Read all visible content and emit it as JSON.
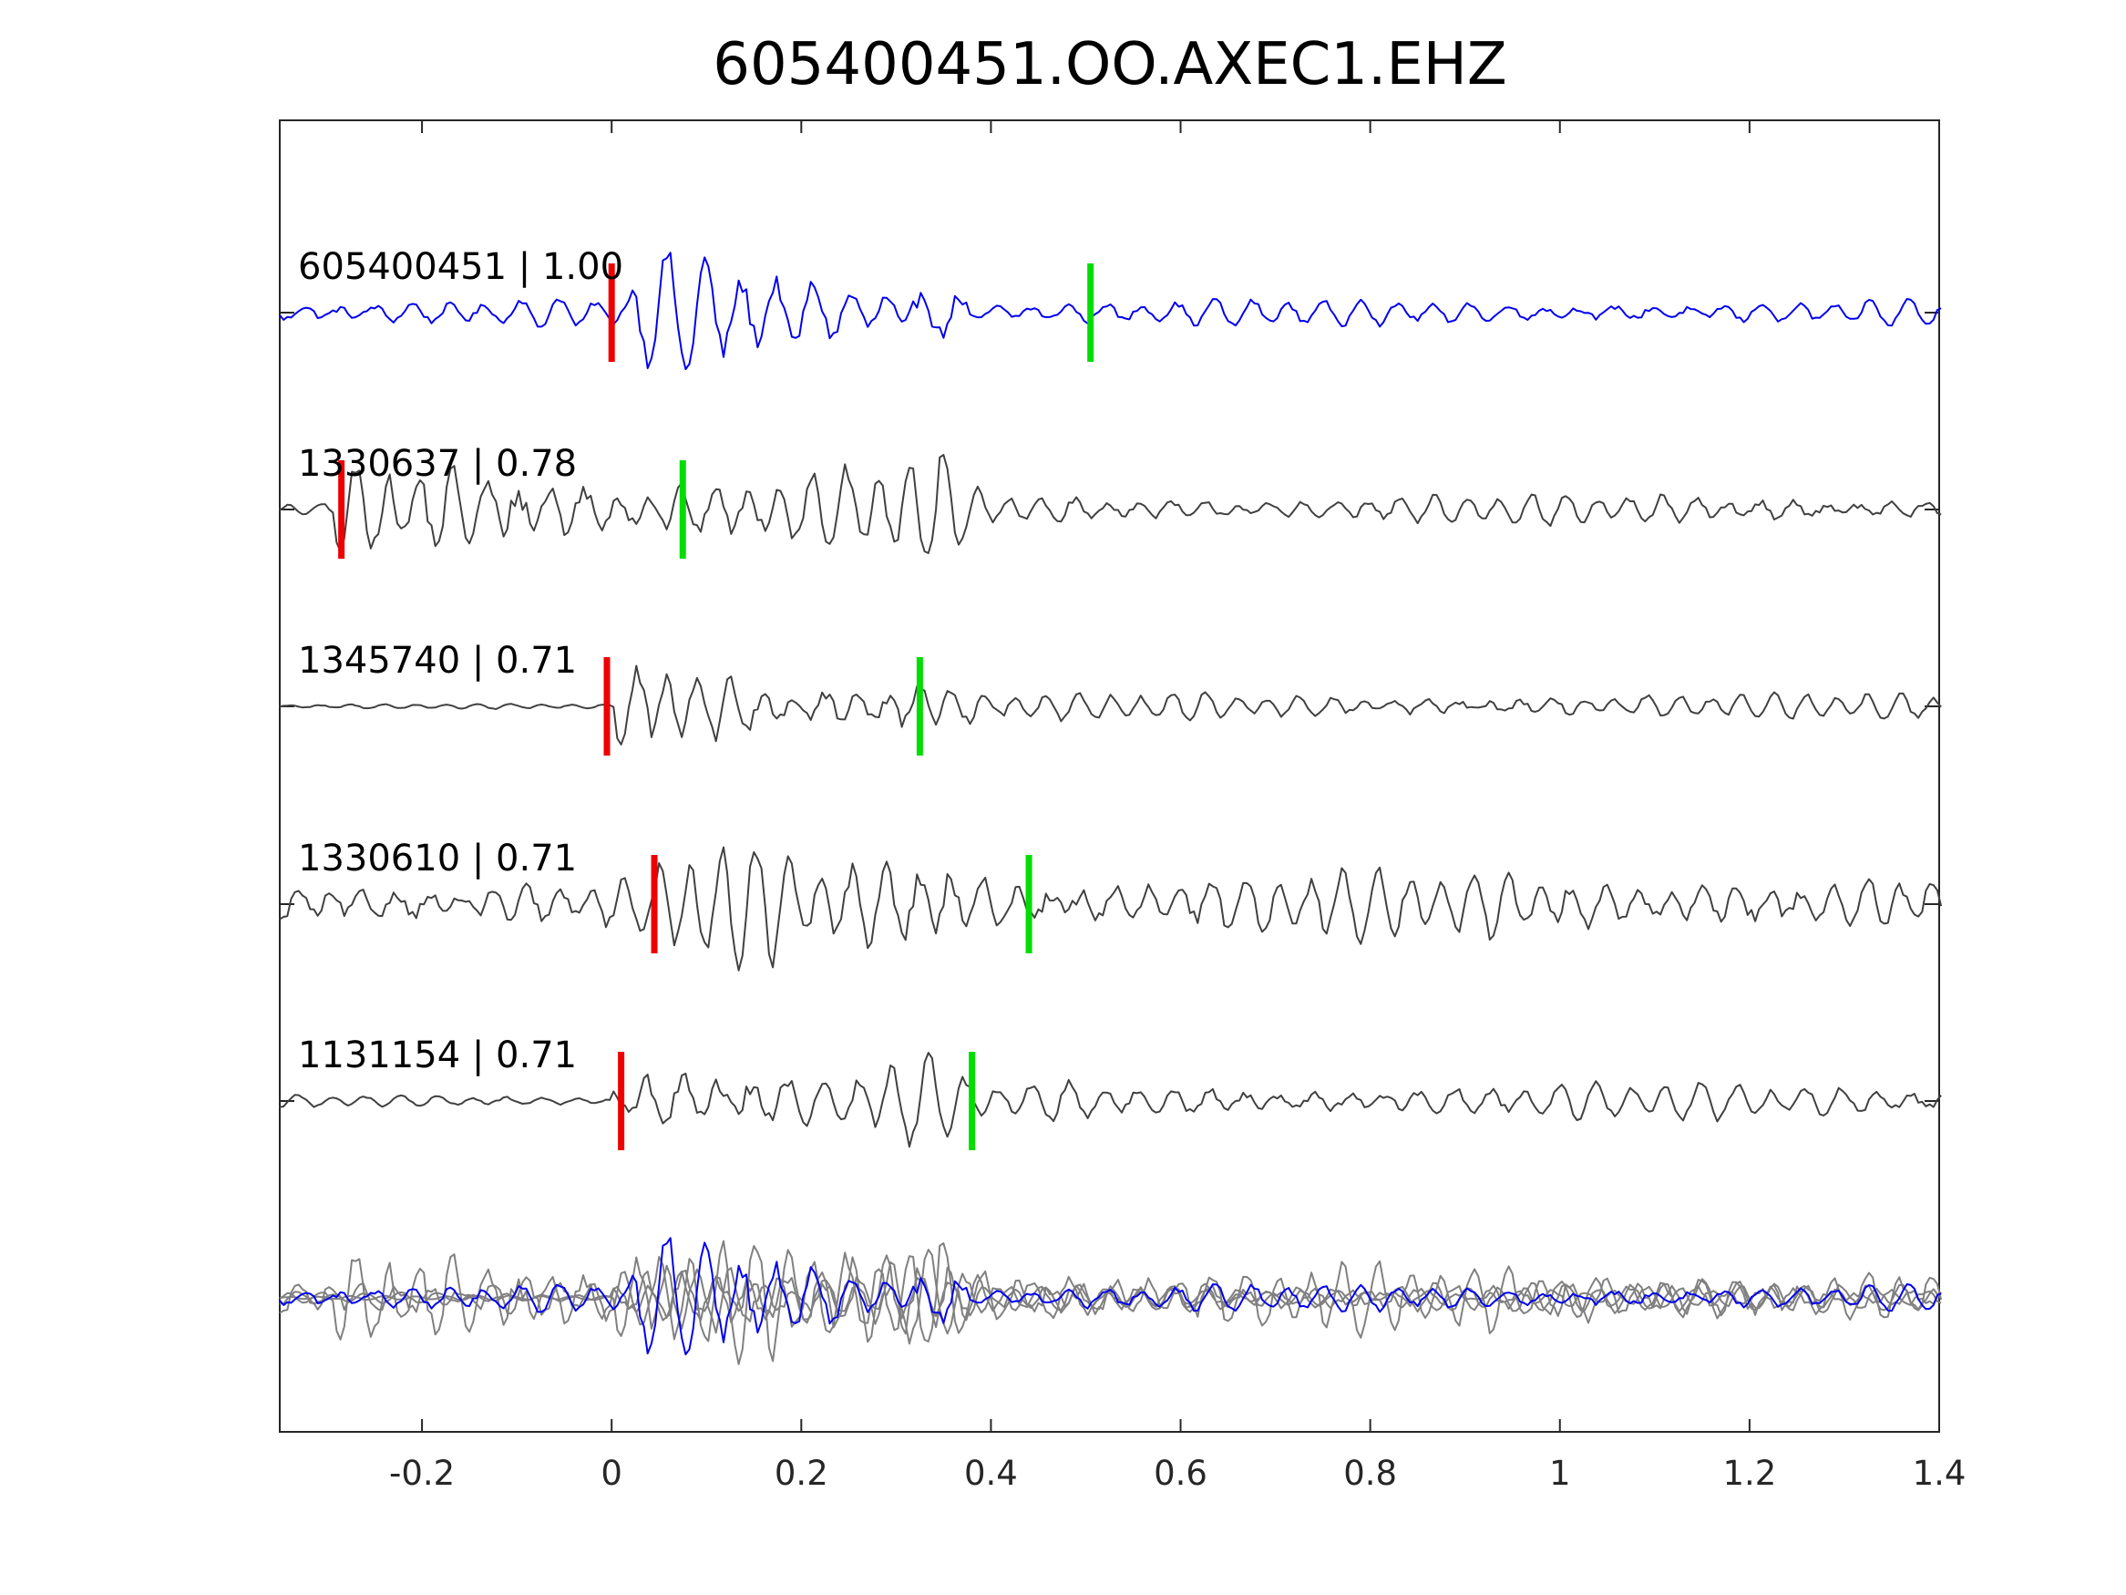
{
  "chart_data": {
    "type": "line",
    "title": "605400451.OO.AXEC1.EHZ",
    "xlabel": "",
    "ylabel": "",
    "xlim": [
      -0.35,
      1.4
    ],
    "xticks": [
      -0.2,
      0,
      0.2,
      0.4,
      0.6,
      0.8,
      1,
      1.2,
      1.4
    ],
    "xtick_labels": [
      "-0.2",
      "0",
      "0.2",
      "0.4",
      "0.6",
      "0.8",
      "1",
      "1.2",
      "1.4"
    ],
    "grid": false,
    "legend": "none",
    "colors": {
      "primary_trace": "#0000ee",
      "secondary_trace": "#404040",
      "stack_trace": "#808080",
      "p_pick": "#ee0000",
      "s_pick": "#00dd00",
      "axes": "#262626"
    },
    "traces": [
      {
        "label": "605400451 | 1.00",
        "event_id": "605400451",
        "correlation": 1.0,
        "color": "#0000ee",
        "p_pick": 0.0,
        "s_pick": 0.505,
        "onset": 0.02,
        "coda_end": 0.35,
        "pre_amp": 0.25,
        "main_amp": 0.95,
        "post_amp": 0.22,
        "freq": 26
      },
      {
        "label": "1330637 | 0.78",
        "event_id": "1330637",
        "correlation": 0.78,
        "color": "#404040",
        "p_pick": -0.285,
        "s_pick": 0.075,
        "onset": -0.29,
        "coda_end": 0.35,
        "pre_amp": 0.1,
        "main_amp": 1.0,
        "post_amp": 0.25,
        "freq": 29
      },
      {
        "label": "1345740 | 0.71",
        "event_id": "1345740",
        "correlation": 0.71,
        "color": "#404040",
        "p_pick": -0.005,
        "s_pick": 0.325,
        "onset": 0.0,
        "coda_end": 0.33,
        "pre_amp": 0.04,
        "main_amp": 0.95,
        "post_amp": 0.22,
        "freq": 30
      },
      {
        "label": "1330610 | 0.71",
        "event_id": "1330610",
        "correlation": 0.71,
        "color": "#404040",
        "p_pick": 0.045,
        "s_pick": 0.44,
        "onset": 0.05,
        "coda_end": 0.35,
        "pre_amp": 0.45,
        "main_amp": 1.0,
        "post_amp": 0.55,
        "freq": 29
      },
      {
        "label": "1131154 | 0.71",
        "event_id": "1131154",
        "correlation": 0.71,
        "color": "#404040",
        "p_pick": 0.01,
        "s_pick": 0.38,
        "onset": 0.0,
        "coda_end": 0.33,
        "pre_amp": 0.1,
        "main_amp": 0.85,
        "post_amp": 0.3,
        "freq": 27
      }
    ]
  }
}
